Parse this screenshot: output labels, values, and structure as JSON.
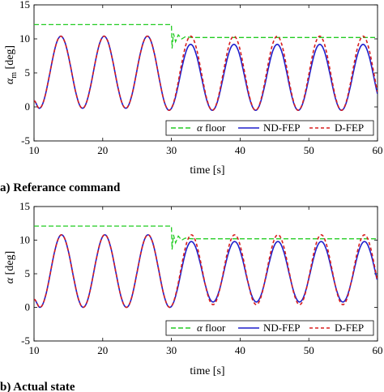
{
  "chart_data": [
    {
      "type": "line",
      "caption": "a) Referance command",
      "xlabel": "time [s]",
      "ylabel_main": "α",
      "ylabel_sub": "m",
      "ylabel_unit": " [deg]",
      "xlim": [
        10,
        60
      ],
      "ylim": [
        -5,
        15
      ],
      "xticks": [
        "10",
        "20",
        "30",
        "40",
        "50",
        "60"
      ],
      "yticks": [
        "-5",
        "0",
        "5",
        "10",
        "15"
      ],
      "grid": false,
      "legend_position": "bottom",
      "legend": {
        "floor_symbol": "α",
        "floor_word": " floor",
        "nd": "ND-FEP",
        "d": "D-FEP"
      },
      "series": [
        {
          "name": "α floor",
          "color": "#22cc22",
          "dash": "6,3",
          "x": [
            10,
            30,
            30.1,
            30.3,
            30.6,
            31,
            31.5,
            32,
            33,
            36,
            60
          ],
          "y": [
            12.1,
            12.1,
            8.6,
            10.8,
            9.6,
            10.6,
            10.0,
            10.3,
            10.2,
            10.2,
            10.2
          ]
        },
        {
          "name": "ND-FEP",
          "color": "#1f1fcc",
          "dash": "",
          "period": 6.28,
          "peaks_time": [
            13.9,
            20.2,
            26.5,
            32.8,
            39.1,
            45.4,
            51.6,
            57.9
          ],
          "peak_values": [
            10.4,
            10.4,
            10.4,
            9.2,
            9.2,
            9.2,
            9.2,
            9.2
          ],
          "trough_values": [
            -0.2,
            -0.2,
            -0.2,
            -0.5,
            -0.5,
            -0.5,
            -0.5,
            -0.5,
            -0.5
          ]
        },
        {
          "name": "D-FEP",
          "color": "#d81e1e",
          "dash": "4,3",
          "period": 6.28,
          "peaks_time": [
            13.9,
            20.2,
            26.5,
            32.8,
            39.1,
            45.4,
            51.6,
            57.9
          ],
          "peak_values": [
            10.4,
            10.4,
            10.4,
            10.4,
            10.4,
            10.4,
            10.4,
            10.4
          ],
          "trough_values": [
            -0.2,
            -0.2,
            -0.2,
            -0.5,
            -0.5,
            -0.5,
            -0.5,
            -0.5,
            -0.5
          ]
        }
      ]
    },
    {
      "type": "line",
      "caption": "b) Actual state",
      "xlabel": "time [s]",
      "ylabel_main": "α",
      "ylabel_sub": "",
      "ylabel_unit": " [deg]",
      "xlim": [
        10,
        60
      ],
      "ylim": [
        -5,
        15
      ],
      "xticks": [
        "10",
        "20",
        "30",
        "40",
        "50",
        "60"
      ],
      "yticks": [
        "-5",
        "0",
        "5",
        "10",
        "15"
      ],
      "grid": false,
      "legend_position": "bottom",
      "legend": {
        "floor_symbol": "α",
        "floor_word": " floor",
        "nd": "ND-FEP",
        "d": "D-FEP"
      },
      "series": [
        {
          "name": "α floor",
          "color": "#22cc22",
          "dash": "6,3",
          "x": [
            10,
            30,
            30.1,
            30.3,
            30.6,
            31,
            31.5,
            32,
            33,
            36,
            60
          ],
          "y": [
            12.1,
            12.1,
            8.6,
            10.8,
            9.6,
            10.6,
            10.0,
            10.3,
            10.2,
            10.2,
            10.2
          ]
        },
        {
          "name": "ND-FEP",
          "color": "#1f1fcc",
          "dash": "",
          "period": 6.28,
          "peaks_time": [
            14.0,
            20.3,
            26.6,
            32.9,
            39.2,
            45.5,
            51.8,
            58.1
          ],
          "peak_values": [
            10.8,
            10.8,
            10.8,
            9.8,
            9.8,
            9.8,
            9.8,
            9.8
          ],
          "trough_values": [
            0.0,
            0.0,
            0.0,
            0.0,
            0.8,
            0.8,
            0.8,
            0.8,
            0.8
          ]
        },
        {
          "name": "D-FEP",
          "color": "#d81e1e",
          "dash": "4,3",
          "period": 6.28,
          "peaks_time": [
            14.0,
            20.3,
            26.6,
            32.9,
            39.2,
            45.5,
            51.8,
            58.1
          ],
          "peak_values": [
            10.8,
            10.8,
            10.8,
            10.8,
            10.8,
            10.8,
            10.8,
            10.8
          ],
          "trough_values": [
            0.0,
            0.0,
            0.0,
            0.0,
            0.4,
            0.4,
            0.4,
            0.4,
            0.4
          ]
        }
      ]
    }
  ]
}
